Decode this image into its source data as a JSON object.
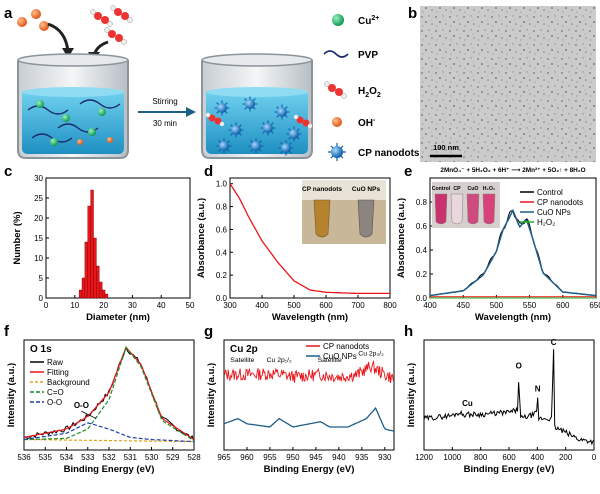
{
  "figure": {
    "panel_labels": [
      "a",
      "b",
      "c",
      "d",
      "e",
      "f",
      "g",
      "h"
    ],
    "schematic": {
      "legend": [
        {
          "symbol": "cu-icon",
          "label_pre": "Cu",
          "label_sup": "2+",
          "label_sub": ""
        },
        {
          "symbol": "pvp-icon",
          "label_pre": "PVP",
          "label_sup": "",
          "label_sub": ""
        },
        {
          "symbol": "h2o2-icon",
          "label_pre": "H",
          "label_sub": "2",
          "label_mid": "O",
          "label_sub2": "2",
          "label_sup": ""
        },
        {
          "symbol": "oh-icon",
          "label_pre": "OH",
          "label_sup": "-",
          "label_sub": ""
        },
        {
          "symbol": "nanodot-icon",
          "label_pre": "CP nanodots",
          "label_sup": "",
          "label_sub": ""
        }
      ],
      "arrow_top": "Stirring",
      "arrow_bottom": "30 min"
    },
    "tem": {
      "scale_bar": "100 nm"
    },
    "colors": {
      "cp": "#e8161b",
      "cuo": "#1f5e8a",
      "control": "#000000",
      "h2o2": "#1db41d",
      "tem_bg": "#c9c9c9",
      "beaker_liquid": "#3fb6dc"
    }
  },
  "chart_data": [
    {
      "panel": "c",
      "type": "bar",
      "title": "",
      "xlabel": "Diameter (nm)",
      "ylabel": "Number (%)",
      "xlim": [
        0,
        50
      ],
      "ylim": [
        0,
        30
      ],
      "xticks": [
        0,
        10,
        20,
        30,
        40,
        50
      ],
      "yticks": [
        0,
        5,
        10,
        15,
        20,
        25,
        30
      ],
      "x": [
        12,
        13,
        14,
        15,
        16,
        17,
        18,
        19,
        20,
        21
      ],
      "values": [
        2,
        5,
        14,
        23,
        27,
        15,
        8,
        4,
        2,
        1
      ]
    },
    {
      "panel": "d",
      "type": "line",
      "xlabel": "Wavelength (nm)",
      "ylabel": "Absorbance (a.u.)",
      "xlim": [
        300,
        800
      ],
      "ylim": [
        0,
        1.05
      ],
      "xticks": [
        300,
        400,
        500,
        600,
        700,
        800
      ],
      "yticks": [
        0.0,
        0.2,
        0.4,
        0.6,
        0.8,
        1.0
      ],
      "inset_labels": [
        "CP nanodots",
        "CuO NPs"
      ],
      "series": [
        {
          "name": "CP nanodots",
          "x": [
            300,
            330,
            360,
            400,
            450,
            500,
            550,
            600,
            700,
            800
          ],
          "y": [
            1.0,
            0.87,
            0.7,
            0.5,
            0.31,
            0.15,
            0.07,
            0.05,
            0.04,
            0.04
          ]
        }
      ]
    },
    {
      "panel": "e",
      "type": "line",
      "xlabel": "Wavelength (nm)",
      "ylabel": "Absorbance (a.u.)",
      "xlim": [
        400,
        650
      ],
      "ylim": [
        0,
        1.0
      ],
      "xticks": [
        400,
        450,
        500,
        550,
        600,
        650
      ],
      "yticks": [
        0.0,
        0.2,
        0.4,
        0.6,
        0.8
      ],
      "equation": "2MnO₄⁻ + 5H₂O₂ + 6H⁺ ⟶ 2Mn²⁺ + 5O₂↑ + 8H₂O",
      "inset_labels": [
        "Control",
        "CP",
        "CuO",
        "H₂O₂"
      ],
      "series": [
        {
          "name": "Control",
          "x": [
            400,
            450,
            480,
            500,
            510,
            525,
            535,
            545,
            555,
            570,
            600,
            650
          ],
          "y": [
            0.02,
            0.06,
            0.2,
            0.4,
            0.58,
            0.74,
            0.6,
            0.67,
            0.5,
            0.22,
            0.05,
            0.02
          ]
        },
        {
          "name": "CP nanodots",
          "x": [
            400,
            450,
            650
          ],
          "y": [
            0.01,
            0.01,
            0.01
          ]
        },
        {
          "name": "CuO NPs",
          "x": [
            400,
            450,
            480,
            500,
            510,
            525,
            535,
            545,
            555,
            570,
            600,
            650
          ],
          "y": [
            0.02,
            0.06,
            0.19,
            0.39,
            0.57,
            0.73,
            0.59,
            0.66,
            0.49,
            0.21,
            0.05,
            0.02
          ]
        },
        {
          "name": "H₂O₂",
          "x": [
            400,
            650
          ],
          "y": [
            0.0,
            0.0
          ]
        }
      ]
    },
    {
      "panel": "f",
      "type": "line",
      "title": "O 1s",
      "xlabel": "Binding Energy (eV)",
      "ylabel": "Intensity (a.u.)",
      "xlim": [
        536,
        528
      ],
      "xticks": [
        536,
        535,
        534,
        533,
        532,
        531,
        530,
        529,
        528
      ],
      "annotation": "O-O",
      "series": [
        {
          "name": "Raw",
          "x": [
            536,
            534,
            533,
            532,
            531.2,
            530.5,
            529.5,
            528
          ],
          "y": [
            0.12,
            0.2,
            0.32,
            0.55,
            0.98,
            0.82,
            0.3,
            0.1
          ]
        },
        {
          "name": "Fitting",
          "x": [
            536,
            534,
            533,
            532,
            531.2,
            530.5,
            529.5,
            528
          ],
          "y": [
            0.12,
            0.2,
            0.32,
            0.55,
            0.98,
            0.82,
            0.3,
            0.1
          ]
        },
        {
          "name": "Background",
          "x": [
            536,
            528
          ],
          "y": [
            0.1,
            0.08
          ]
        },
        {
          "name": "C=O",
          "x": [
            536,
            534,
            533,
            532,
            531.2,
            530.5,
            529.5,
            528
          ],
          "y": [
            0.1,
            0.11,
            0.2,
            0.48,
            0.98,
            0.8,
            0.28,
            0.09
          ]
        },
        {
          "name": "O-O",
          "x": [
            536,
            534,
            533,
            532,
            531,
            530,
            528
          ],
          "y": [
            0.1,
            0.16,
            0.26,
            0.2,
            0.12,
            0.1,
            0.08
          ]
        }
      ]
    },
    {
      "panel": "g",
      "type": "line",
      "title": "Cu 2p",
      "xlabel": "Binding Energy (eV)",
      "ylabel": "Intensity (a.u.)",
      "xlim": [
        965,
        928
      ],
      "xticks": [
        965,
        960,
        955,
        950,
        945,
        940,
        935,
        930
      ],
      "annotations": [
        "Satellite",
        "Cu 2p₁/₂",
        "Satellite",
        "Cu 2p₃/₂"
      ],
      "series": [
        {
          "name": "CP nanodots",
          "x": [
            965,
            960,
            954,
            950,
            944,
            940,
            936,
            933,
            930,
            928
          ],
          "y": [
            0.72,
            0.72,
            0.73,
            0.7,
            0.72,
            0.7,
            0.72,
            0.8,
            0.72,
            0.68
          ]
        },
        {
          "name": "CuO NPs",
          "x": [
            965,
            962,
            960,
            955,
            953,
            950,
            944,
            942,
            938,
            934,
            932,
            930,
            928
          ],
          "y": [
            0.25,
            0.3,
            0.25,
            0.22,
            0.3,
            0.22,
            0.27,
            0.22,
            0.22,
            0.3,
            0.4,
            0.2,
            0.18
          ]
        }
      ]
    },
    {
      "panel": "h",
      "type": "line",
      "xlabel": "Binding Energy (eV)",
      "ylabel": "Intensity (a.u.)",
      "xlim": [
        1200,
        0
      ],
      "xticks": [
        1200,
        1000,
        800,
        600,
        400,
        200,
        0
      ],
      "peak_labels": [
        "Cu",
        "O",
        "N",
        "C"
      ],
      "series": [
        {
          "name": "survey",
          "x": [
            1200,
            1000,
            950,
            930,
            800,
            600,
            540,
            531,
            520,
            420,
            400,
            398,
            390,
            300,
            285,
            280,
            100,
            0
          ],
          "y": [
            0.3,
            0.33,
            0.36,
            0.34,
            0.34,
            0.36,
            0.38,
            0.72,
            0.3,
            0.34,
            0.36,
            0.5,
            0.3,
            0.3,
            0.95,
            0.22,
            0.1,
            0.08
          ]
        }
      ]
    }
  ]
}
